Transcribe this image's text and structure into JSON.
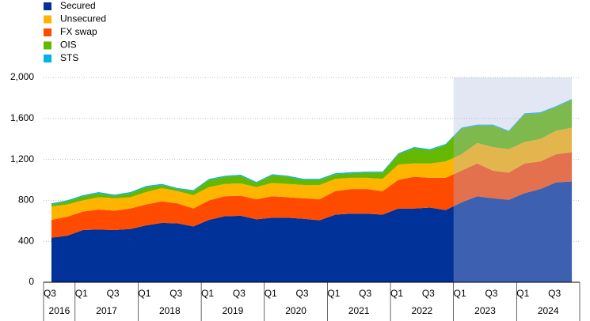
{
  "chart_data": {
    "type": "stacked_area",
    "categories": [
      "Q3",
      null,
      "Q1",
      null,
      "Q3",
      null,
      "Q1",
      null,
      "Q3",
      null,
      "Q1",
      null,
      "Q3",
      null,
      "Q1",
      null,
      "Q3",
      null,
      "Q1",
      null,
      "Q3",
      null,
      "Q1",
      null,
      "Q3",
      null,
      "Q1",
      null,
      "Q3",
      null,
      "Q1",
      null,
      "Q3",
      null
    ],
    "years": [
      "2016",
      "2017",
      "2018",
      "2019",
      "2020",
      "2021",
      "2022",
      "2023",
      "2024"
    ],
    "series": [
      {
        "name": "Secured",
        "color": "#003299",
        "values": [
          435,
          455,
          510,
          515,
          510,
          520,
          555,
          580,
          575,
          545,
          610,
          645,
          650,
          615,
          630,
          630,
          620,
          605,
          660,
          670,
          670,
          660,
          720,
          720,
          730,
          705,
          780,
          840,
          820,
          805,
          870,
          910,
          975,
          985
        ]
      },
      {
        "name": "Unsecured",
        "color": "#ffb400",
        "values": [
          130,
          120,
          110,
          120,
          120,
          110,
          120,
          130,
          120,
          130,
          130,
          120,
          120,
          120,
          130,
          130,
          130,
          140,
          120,
          110,
          110,
          120,
          150,
          130,
          140,
          160,
          160,
          200,
          230,
          230,
          210,
          220,
          230,
          240
        ]
      },
      {
        "name": "FX swap",
        "color": "#ff4b00",
        "values": [
          175,
          185,
          180,
          195,
          190,
          200,
          205,
          210,
          195,
          175,
          190,
          195,
          195,
          195,
          210,
          200,
          200,
          205,
          230,
          240,
          240,
          230,
          280,
          310,
          290,
          315,
          310,
          320,
          270,
          265,
          290,
          270,
          275,
          285
        ]
      },
      {
        "name": "OIS",
        "color": "#65b800",
        "values": [
          20,
          30,
          40,
          40,
          25,
          40,
          50,
          30,
          20,
          40,
          70,
          70,
          75,
          40,
          75,
          70,
          50,
          50,
          45,
          45,
          50,
          60,
          100,
          150,
          130,
          160,
          250,
          170,
          210,
          170,
          270,
          250,
          230,
          270
        ]
      },
      {
        "name": "STS",
        "color": "#00b1ea",
        "values": [
          10,
          10,
          10,
          10,
          10,
          10,
          10,
          10,
          10,
          10,
          10,
          10,
          10,
          10,
          10,
          10,
          10,
          10,
          10,
          10,
          10,
          10,
          10,
          10,
          10,
          10,
          10,
          10,
          10,
          10,
          10,
          10,
          10,
          10
        ]
      }
    ],
    "stack_order": [
      0,
      2,
      1,
      3,
      4
    ],
    "ylim": [
      0,
      2000
    ],
    "yticks": [
      0,
      {
        "value": 400,
        "label": "400"
      },
      {
        "value": 800,
        "label": "800"
      },
      {
        "value": 1200,
        "label": "1,200"
      },
      {
        "value": 1600,
        "label": "1,600"
      },
      {
        "value": 2000,
        "label": "2,000"
      }
    ],
    "grid": true,
    "shade_start": 26
  }
}
